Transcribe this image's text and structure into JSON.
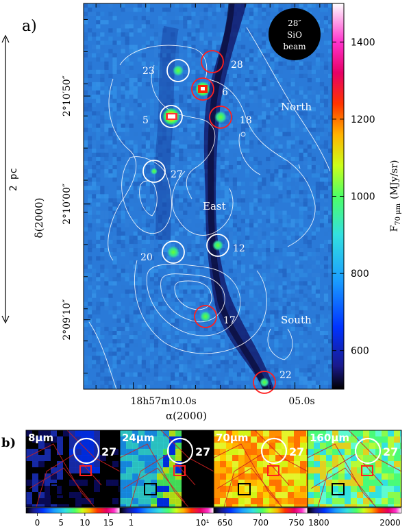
{
  "panel_a": {
    "label": "a)",
    "scale_bar_label": "2 pc",
    "beam_label_line1": "28″",
    "beam_label_line2": "SiO",
    "beam_label_line3": "beam",
    "region_labels": [
      "North",
      "East",
      "South"
    ],
    "xlabel": "α(2000)",
    "ylabel": "δ(2000)",
    "colorbar_label": "F",
    "colorbar_label_sub": "70 μm",
    "colorbar_label_unit": "(MJy/sr)"
  },
  "panel_b": {
    "label": "b)",
    "subpanels": [
      {
        "wavelength": "8μm",
        "source": "27",
        "ticks": [
          "0",
          "5",
          "10",
          "15"
        ]
      },
      {
        "wavelength": "24μm",
        "source": "27",
        "ticks": [
          "1",
          "10¹"
        ]
      },
      {
        "wavelength": "70μm",
        "source": "27",
        "ticks": [
          "650",
          "700",
          "750"
        ]
      },
      {
        "wavelength": "160μm",
        "source": "27",
        "ticks": [
          "1800",
          "2000"
        ]
      }
    ]
  },
  "chart_data": {
    "type": "heatmap",
    "colorbar_ticks": [
      600,
      800,
      1000,
      1200,
      1400
    ],
    "colorbar_range": [
      500,
      1500
    ],
    "x_ticks": [
      {
        "pos": 0.2,
        "label": "18h57m10.0s"
      },
      {
        "pos": 0.85,
        "label": "05.0s"
      }
    ],
    "y_ticks": [
      {
        "pos": 0.24,
        "label": "2°10′50″"
      },
      {
        "pos": 0.52,
        "label": "2°10′00″"
      },
      {
        "pos": 0.82,
        "label": "2°09′10″"
      }
    ],
    "sources": [
      {
        "id": "23",
        "color": "white"
      },
      {
        "id": "28",
        "color": "red"
      },
      {
        "id": "6",
        "color": "red"
      },
      {
        "id": "5",
        "color": "white"
      },
      {
        "id": "18",
        "color": "red"
      },
      {
        "id": "27",
        "color": "white"
      },
      {
        "id": "12",
        "color": "white"
      },
      {
        "id": "20",
        "color": "white"
      },
      {
        "id": "17",
        "color": "red"
      },
      {
        "id": "22",
        "color": "red"
      }
    ]
  }
}
